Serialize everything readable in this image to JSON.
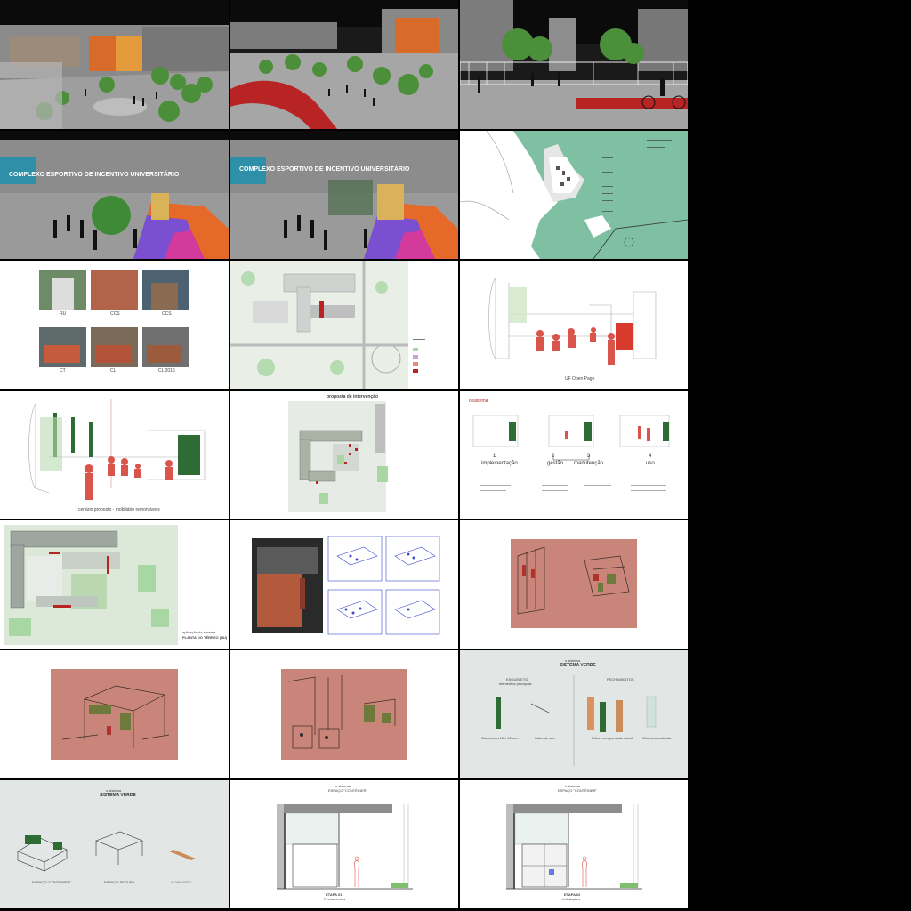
{
  "tiles": {
    "r2c1": {
      "banner": "COMPLEXO ESPORTIVO DE INCENTIVO UNIVERSITÁRIO"
    },
    "r2c2": {
      "banner": "COMPLEXO ESPORTIVO DE INCENTIVO UNIVERSITÁRIO"
    },
    "r3c1": {
      "captions": [
        "RU",
        "CCS",
        "CCS",
        "CT",
        "CL",
        "CL 2016"
      ]
    },
    "r3c3": {
      "caption": "UF Open Page"
    },
    "r4c1": {
      "caption": "cenário proposto · mobiliário remontáveis"
    },
    "r4c2": {
      "title": "proposta de intervenção"
    },
    "r4c3": {
      "heading": "o sistema",
      "steps": [
        {
          "num": "1",
          "label": "implementação"
        },
        {
          "num": "2",
          "label": "gestão"
        },
        {
          "num": "3",
          "label": "manutenção"
        },
        {
          "num": "4",
          "label": "uso"
        }
      ]
    },
    "r5c1": {
      "caption_line1": "aplicação do sistema",
      "caption_line2": "PLANTA DO TÉRREO (RU)"
    },
    "r6c3": {
      "heading_small": "o sistema",
      "heading": "SISTEMA VERDE",
      "left_label": "ESQUELETO",
      "left_sublabel": "elementos principais",
      "right_label": "FECHAMENTOS",
      "items": [
        "Cantoneira 10 x 10 mm",
        "Cabo de aço",
        "Painel compensado naval",
        "Chapa translúcida"
      ]
    },
    "r7c1": {
      "heading_small": "o sistema",
      "heading": "SISTEMA VERDE",
      "labels": [
        "ESPAÇO \"CONTÊINER\"",
        "ESPAÇO SEGURA",
        "MOBILIÁRIO"
      ]
    },
    "r7c2": {
      "heading_small": "o sistema",
      "heading": "ESPAÇO \"CONTÊINER\"",
      "stage": "ETAPA 01",
      "stage_label": "Fechamentos"
    },
    "r7c3": {
      "heading_small": "o sistema",
      "heading": "ESPAÇO \"CONTÊINER\"",
      "stage": "ETAPA 02",
      "stage_label": "Instalações"
    }
  },
  "colors": {
    "red_accent": "#c8372d",
    "terracotta": "#c9857a",
    "map_green": "#7fbfa2",
    "site_green": "#a9d7a4",
    "dark_green": "#2e6b35",
    "court_purple": "#8b5ed0",
    "court_orange": "#e8692a"
  }
}
